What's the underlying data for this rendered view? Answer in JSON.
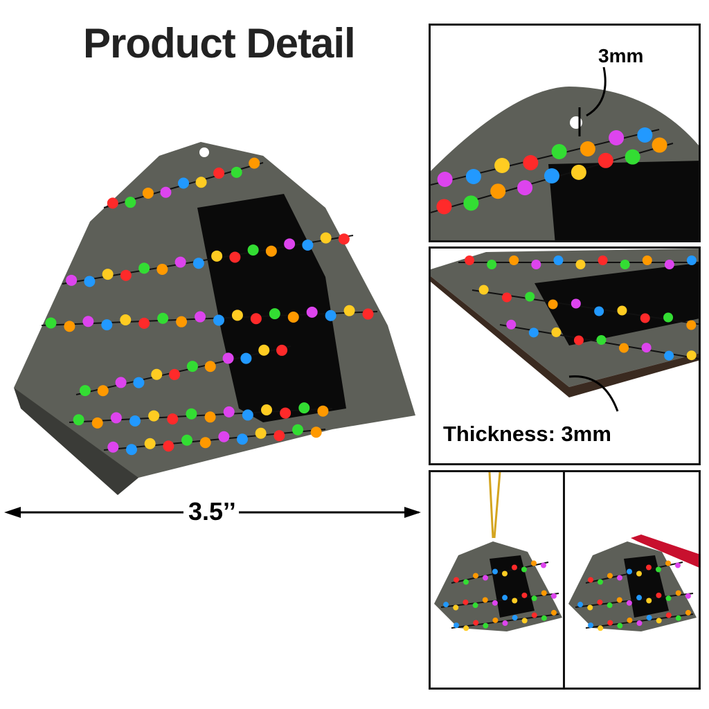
{
  "title": "Product Detail",
  "dimension_label": "3.5’’",
  "hole_label": "3mm",
  "thickness_label": "Thickness: 3mm",
  "colors": {
    "tent": "#5d5f58",
    "door": "#0a0a0a",
    "lights": [
      "#ff2a2a",
      "#33dd33",
      "#ff9900",
      "#dd44ee",
      "#2299ff",
      "#ffcc22"
    ]
  }
}
